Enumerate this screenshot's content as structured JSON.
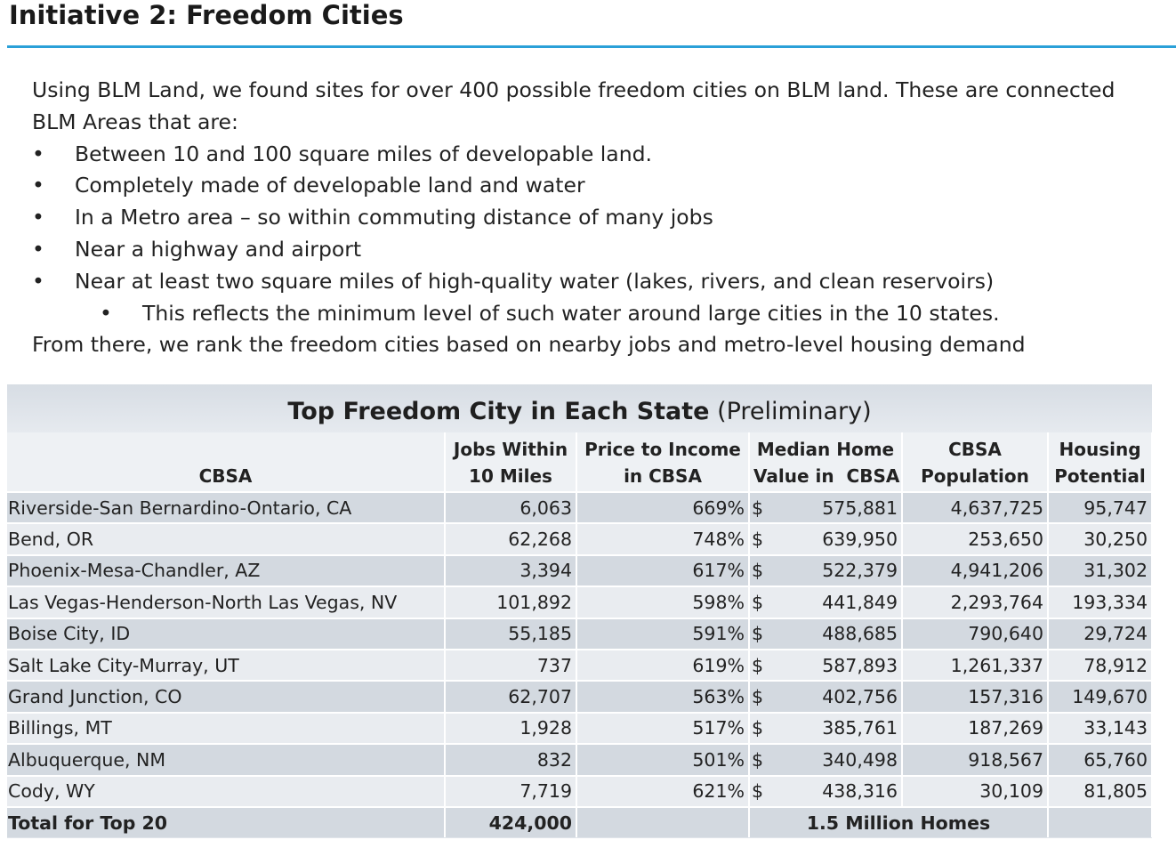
{
  "slide": {
    "title": "Initiative 2: Freedom Cities",
    "intro_line": "Using BLM Land, we found sites for over 400 possible freedom cities on BLM land. These are connected BLM Areas that are:",
    "bullets": [
      "Between 10 and 100 square miles of developable land.",
      "Completely made of developable land and water",
      "In a Metro area – so within commuting distance of many jobs",
      "Near a highway and airport",
      "Near at least two square miles of high-quality water (lakes, rivers, and clean reservoirs)"
    ],
    "sub_bullet": "This reflects the minimum level of such water around large cities in the 10 states.",
    "closing_line": "From there, we rank the freedom cities based on nearby jobs and metro-level housing demand",
    "bullet_glyph": "•",
    "accent_color": "#2aa0d8"
  },
  "table": {
    "caption_bold": "Top Freedom City in Each State",
    "caption_normal": "(Preliminary)",
    "headers": {
      "cbsa": "CBSA",
      "jobs_1": "Jobs Within",
      "jobs_2": "10 Miles",
      "pti_1": "Price to Income",
      "pti_2": "in CBSA",
      "mhv_1": "Median Home",
      "mhv_2": "Value in  CBSA",
      "pop_1": "CBSA",
      "pop_2": "Population",
      "hp_1": "Housing",
      "hp_2": "Potential"
    },
    "currency_symbol": "$",
    "rows": [
      {
        "cbsa": "Riverside-San Bernardino-Ontario, CA",
        "jobs": "6,063",
        "pti": "669%",
        "mhv": "575,881",
        "pop": "4,637,725",
        "hp": "95,747"
      },
      {
        "cbsa": "Bend, OR",
        "jobs": "62,268",
        "pti": "748%",
        "mhv": "639,950",
        "pop": "253,650",
        "hp": "30,250"
      },
      {
        "cbsa": "Phoenix-Mesa-Chandler, AZ",
        "jobs": "3,394",
        "pti": "617%",
        "mhv": "522,379",
        "pop": "4,941,206",
        "hp": "31,302"
      },
      {
        "cbsa": "Las Vegas-Henderson-North Las Vegas, NV",
        "jobs": "101,892",
        "pti": "598%",
        "mhv": "441,849",
        "pop": "2,293,764",
        "hp": "193,334"
      },
      {
        "cbsa": "Boise City, ID",
        "jobs": "55,185",
        "pti": "591%",
        "mhv": "488,685",
        "pop": "790,640",
        "hp": "29,724"
      },
      {
        "cbsa": "Salt Lake City-Murray, UT",
        "jobs": "737",
        "pti": "619%",
        "mhv": "587,893",
        "pop": "1,261,337",
        "hp": "78,912"
      },
      {
        "cbsa": "Grand Junction, CO",
        "jobs": "62,707",
        "pti": "563%",
        "mhv": "402,756",
        "pop": "157,316",
        "hp": "149,670"
      },
      {
        "cbsa": "Billings, MT",
        "jobs": "1,928",
        "pti": "517%",
        "mhv": "385,761",
        "pop": "187,269",
        "hp": "33,143"
      },
      {
        "cbsa": "Albuquerque, NM",
        "jobs": "832",
        "pti": "501%",
        "mhv": "340,498",
        "pop": "918,567",
        "hp": "65,760"
      },
      {
        "cbsa": "Cody, WY",
        "jobs": "7,719",
        "pti": "621%",
        "mhv": "438,316",
        "pop": "30,109",
        "hp": "81,805"
      }
    ],
    "total": {
      "label": "Total for Top 20",
      "jobs": "424,000",
      "homes": "1.5 Million Homes"
    }
  }
}
